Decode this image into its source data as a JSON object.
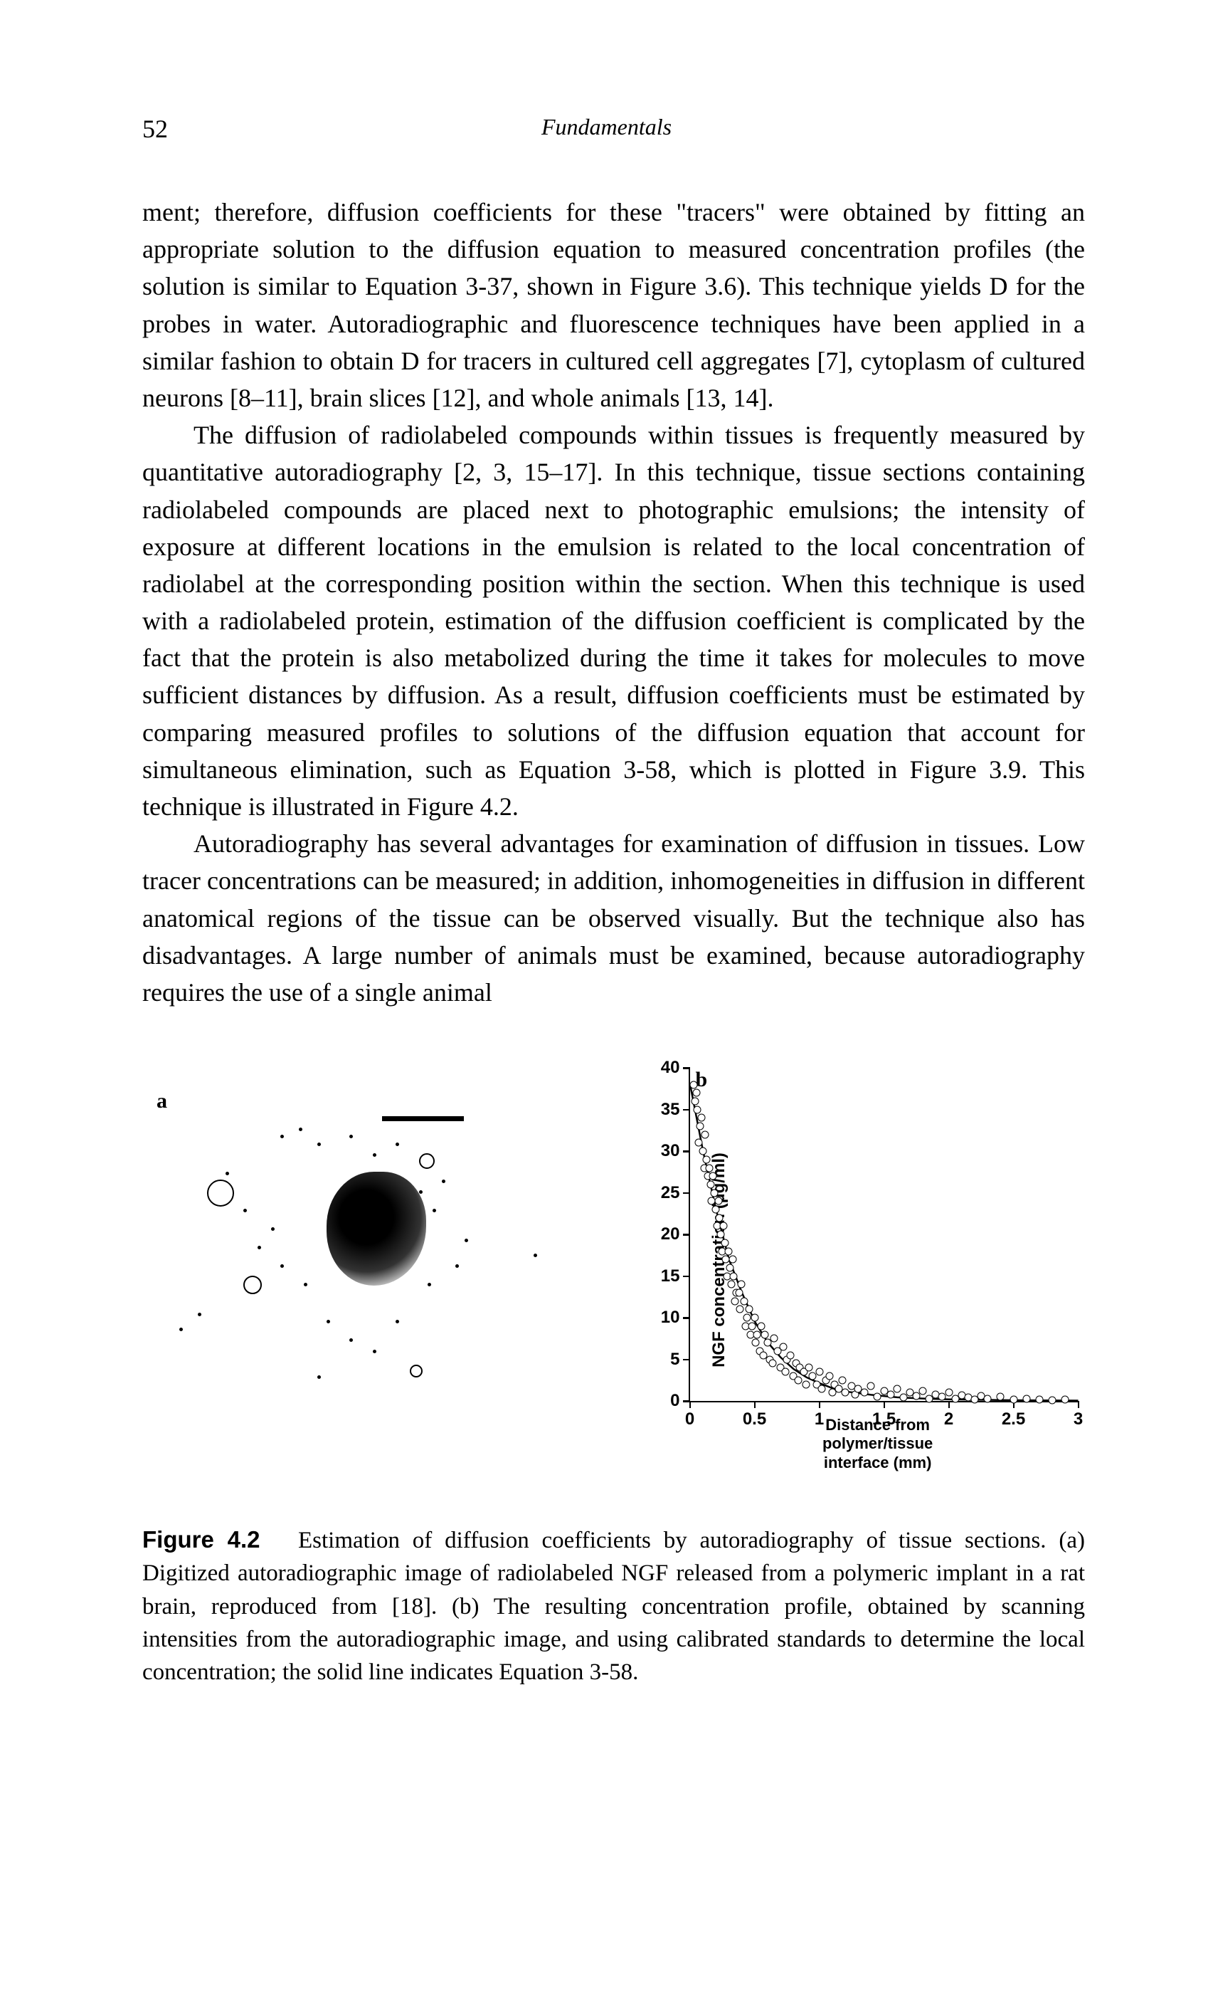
{
  "header": {
    "page_number": "52",
    "running_head": "Fundamentals"
  },
  "paragraphs": {
    "p1": "ment; therefore, diffusion coefficients for these \"tracers\" were obtained by fitting an appropriate solution to the diffusion equation to measured concentration profiles (the solution is similar to Equation 3-37, shown in Figure 3.6). This technique yields D for the probes in water. Autoradiographic and fluorescence techniques have been applied in a similar fashion to obtain D for tracers in cultured cell aggregates [7], cytoplasm of cultured neurons [8–11], brain slices [12], and whole animals [13, 14].",
    "p2": "The diffusion of radiolabeled compounds within tissues is frequently measured by quantitative autoradiography [2, 3, 15–17]. In this technique, tissue sections containing radiolabeled compounds are placed next to photographic emulsions; the intensity of exposure at different locations in the emulsion is related to the local concentration of radiolabel at the corresponding position within the section. When this technique is used with a radiolabeled protein, estimation of the diffusion coefficient is complicated by the fact that the protein is also metabolized during the time it takes for molecules to move sufficient distances by diffusion. As a result, diffusion coefficients must be estimated by comparing measured profiles to solutions of the diffusion equation that account for simultaneous elimination, such as Equation 3-58, which is plotted in Figure 3.9. This technique is illustrated in Figure 4.2.",
    "p3": "Autoradiography has several advantages for examination of diffusion in tissues. Low tracer concentrations can be measured; in addition, inhomogeneities in diffusion in different anatomical regions of the tissue can be observed visually. But the technique also has disadvantages. A large number of animals must be examined, because autoradiography requires the use of a single animal"
  },
  "figure": {
    "panel_a_label": "a",
    "panel_b_label": "b",
    "chart": {
      "type": "scatter",
      "y_label": "NGF concentration (µg/ml)",
      "x_label_line1": "Distance from polymer/tissue",
      "x_label_line2": "interface (mm)",
      "xlim": [
        0,
        3
      ],
      "ylim": [
        0,
        40
      ],
      "x_ticks": [
        0,
        0.5,
        1,
        1.5,
        2,
        2.5,
        3
      ],
      "y_ticks": [
        0,
        5,
        10,
        15,
        20,
        25,
        30,
        35,
        40
      ],
      "axis_color": "#000000",
      "tick_fontsize": 24,
      "label_fontsize": 24,
      "marker_style": "open-circle",
      "marker_size": 9,
      "marker_border": "#000000",
      "marker_fill": "#ffffff",
      "curve_color": "#000000",
      "curve_width": 2.5,
      "background_color": "#ffffff",
      "scatter": [
        [
          0.03,
          38
        ],
        [
          0.04,
          36
        ],
        [
          0.05,
          37
        ],
        [
          0.06,
          35
        ],
        [
          0.08,
          33
        ],
        [
          0.07,
          31
        ],
        [
          0.09,
          34
        ],
        [
          0.1,
          30
        ],
        [
          0.12,
          32
        ],
        [
          0.11,
          28
        ],
        [
          0.13,
          29
        ],
        [
          0.14,
          27
        ],
        [
          0.15,
          28
        ],
        [
          0.16,
          26
        ],
        [
          0.18,
          27
        ],
        [
          0.17,
          24
        ],
        [
          0.19,
          25
        ],
        [
          0.2,
          23
        ],
        [
          0.22,
          24
        ],
        [
          0.21,
          21
        ],
        [
          0.23,
          22
        ],
        [
          0.24,
          20
        ],
        [
          0.26,
          21
        ],
        [
          0.25,
          18
        ],
        [
          0.27,
          19
        ],
        [
          0.28,
          17
        ],
        [
          0.3,
          18
        ],
        [
          0.29,
          15
        ],
        [
          0.31,
          16
        ],
        [
          0.33,
          17
        ],
        [
          0.32,
          14
        ],
        [
          0.34,
          15
        ],
        [
          0.36,
          13
        ],
        [
          0.35,
          12
        ],
        [
          0.38,
          13
        ],
        [
          0.4,
          14
        ],
        [
          0.39,
          11
        ],
        [
          0.42,
          12
        ],
        [
          0.44,
          10
        ],
        [
          0.43,
          9
        ],
        [
          0.46,
          11
        ],
        [
          0.48,
          9
        ],
        [
          0.47,
          8
        ],
        [
          0.5,
          10
        ],
        [
          0.52,
          8
        ],
        [
          0.51,
          7
        ],
        [
          0.55,
          9
        ],
        [
          0.54,
          6
        ],
        [
          0.58,
          8
        ],
        [
          0.57,
          5.5
        ],
        [
          0.6,
          7
        ],
        [
          0.62,
          5
        ],
        [
          0.65,
          7.5
        ],
        [
          0.64,
          4.5
        ],
        [
          0.68,
          6
        ],
        [
          0.7,
          4
        ],
        [
          0.72,
          6.5
        ],
        [
          0.75,
          5
        ],
        [
          0.74,
          3.5
        ],
        [
          0.78,
          5.5
        ],
        [
          0.8,
          3
        ],
        [
          0.82,
          4.5
        ],
        [
          0.85,
          4
        ],
        [
          0.84,
          2.5
        ],
        [
          0.88,
          3.5
        ],
        [
          0.9,
          2
        ],
        [
          0.92,
          4
        ],
        [
          0.95,
          3
        ],
        [
          0.98,
          2
        ],
        [
          1.0,
          3.5
        ],
        [
          1.02,
          1.5
        ],
        [
          1.05,
          2.5
        ],
        [
          1.08,
          3
        ],
        [
          1.1,
          1
        ],
        [
          1.12,
          2
        ],
        [
          1.15,
          1.5
        ],
        [
          1.18,
          2.5
        ],
        [
          1.2,
          1
        ],
        [
          1.25,
          1.8
        ],
        [
          1.28,
          0.8
        ],
        [
          1.3,
          1.5
        ],
        [
          1.35,
          1
        ],
        [
          1.4,
          1.8
        ],
        [
          1.45,
          0.5
        ],
        [
          1.5,
          1.2
        ],
        [
          1.55,
          0.8
        ],
        [
          1.6,
          1.5
        ],
        [
          1.65,
          0.4
        ],
        [
          1.7,
          1
        ],
        [
          1.75,
          0.6
        ],
        [
          1.8,
          1.2
        ],
        [
          1.85,
          0.3
        ],
        [
          1.9,
          0.8
        ],
        [
          1.95,
          0.5
        ],
        [
          2.0,
          1
        ],
        [
          2.05,
          0.3
        ],
        [
          2.1,
          0.7
        ],
        [
          2.15,
          0.4
        ],
        [
          2.2,
          0.2
        ],
        [
          2.25,
          0.6
        ],
        [
          2.3,
          0.3
        ],
        [
          2.4,
          0.5
        ],
        [
          2.5,
          0.2
        ],
        [
          2.6,
          0.3
        ],
        [
          2.7,
          0.2
        ],
        [
          2.8,
          0.1
        ],
        [
          2.9,
          0.2
        ]
      ],
      "curve_points": [
        [
          0,
          38
        ],
        [
          0.1,
          30
        ],
        [
          0.2,
          23
        ],
        [
          0.3,
          17
        ],
        [
          0.4,
          13
        ],
        [
          0.5,
          9.5
        ],
        [
          0.6,
          7
        ],
        [
          0.7,
          5.2
        ],
        [
          0.8,
          3.8
        ],
        [
          0.9,
          2.8
        ],
        [
          1.0,
          2.1
        ],
        [
          1.1,
          1.5
        ],
        [
          1.2,
          1.1
        ],
        [
          1.4,
          0.7
        ],
        [
          1.6,
          0.4
        ],
        [
          1.8,
          0.25
        ],
        [
          2.0,
          0.15
        ],
        [
          2.5,
          0.05
        ],
        [
          3.0,
          0.01
        ]
      ]
    },
    "caption": {
      "fig_num": "Figure 4.2",
      "text": "Estimation of diffusion coefficients by autoradiography of tissue sections. (a) Digitized autoradiographic image of radiolabeled NGF released from a polymeric implant in a rat brain, reproduced from [18]. (b) The resulting concentration profile, obtained by scanning intensities from the autoradiographic image, and using calibrated standards to determine the local concentration; the solid line indicates Equation 3-58."
    }
  }
}
